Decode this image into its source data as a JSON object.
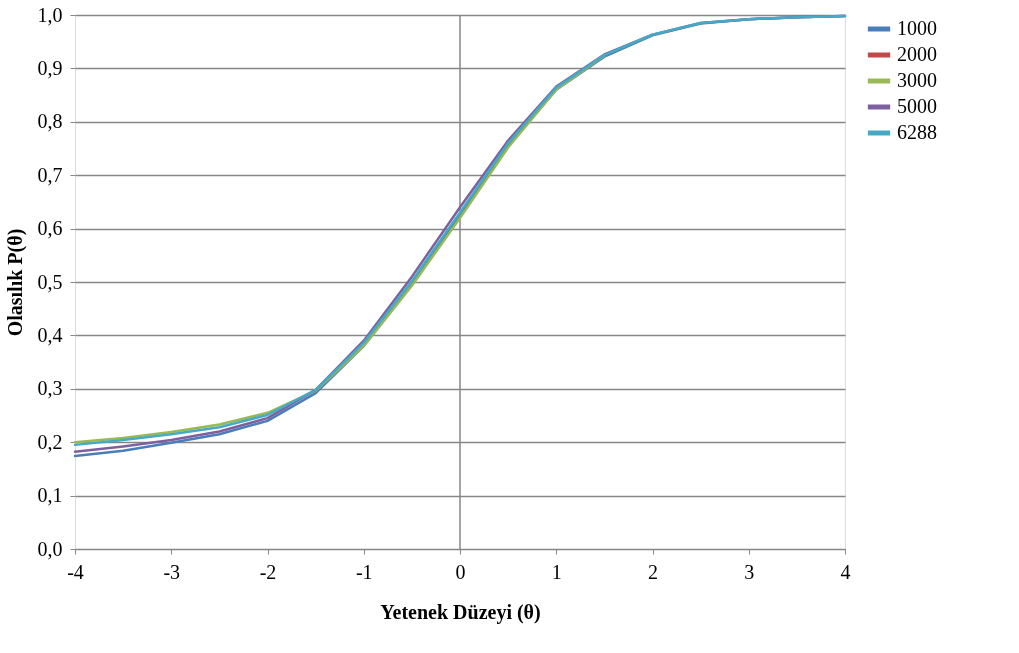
{
  "chart_data": {
    "type": "line",
    "xlabel": "Yetenek Düzeyi (θ)",
    "ylabel": "Olasılık   P(θ)",
    "x": [
      -4,
      -3.5,
      -3,
      -2.5,
      -2,
      -1.5,
      -1,
      -0.5,
      0,
      0.5,
      1,
      1.5,
      2,
      2.5,
      3,
      3.5,
      4
    ],
    "series": [
      {
        "name": "1000",
        "color": "#4a7ebb",
        "values": [
          0.174,
          0.184,
          0.199,
          0.215,
          0.24,
          0.292,
          0.38,
          0.495,
          0.625,
          0.755,
          0.86,
          0.922,
          0.962,
          0.984,
          0.992,
          0.996,
          0.998
        ]
      },
      {
        "name": "2000",
        "color": "#be4b48",
        "values": [
          null,
          null,
          null,
          null,
          null,
          null,
          null,
          null,
          null,
          null,
          null,
          null,
          null,
          null,
          null,
          null,
          null
        ]
      },
      {
        "name": "3000",
        "color": "#98b954",
        "values": [
          0.2,
          0.208,
          0.219,
          0.233,
          0.255,
          0.296,
          0.38,
          0.493,
          0.62,
          0.752,
          0.86,
          0.924,
          null,
          null,
          null,
          null,
          null
        ]
      },
      {
        "name": "5000",
        "color": "#7d60a0",
        "values": [
          0.182,
          0.192,
          0.204,
          0.22,
          0.245,
          0.298,
          0.39,
          0.51,
          0.64,
          0.765,
          0.866,
          0.926,
          0.963,
          0.985,
          0.992,
          0.996,
          0.998
        ]
      },
      {
        "name": "6288",
        "color": "#46aac5",
        "values": [
          0.195,
          0.204,
          0.215,
          0.228,
          0.251,
          0.298,
          0.386,
          0.502,
          0.63,
          0.76,
          0.864,
          0.925,
          0.963,
          0.985,
          0.992,
          0.996,
          0.998
        ]
      }
    ],
    "xlim": [
      -4,
      4
    ],
    "xticks": [
      -4,
      -3,
      -2,
      -1,
      0,
      1,
      2,
      3,
      4
    ],
    "ylim": [
      0,
      1
    ],
    "yticks": [
      {
        "value": 0,
        "label": "0,0"
      },
      {
        "value": 0.1,
        "label": "0,1"
      },
      {
        "value": 0.2,
        "label": "0,2"
      },
      {
        "value": 0.3,
        "label": "0,3"
      },
      {
        "value": 0.4,
        "label": "0,4"
      },
      {
        "value": 0.5,
        "label": "0,5"
      },
      {
        "value": 0.6,
        "label": "0,6"
      },
      {
        "value": 0.7,
        "label": "0,7"
      },
      {
        "value": 0.8,
        "label": "0,8"
      },
      {
        "value": 0.9,
        "label": "0,9"
      },
      {
        "value": 1,
        "label": "1,0"
      }
    ],
    "ref_lines": [
      {
        "axis": "x",
        "value": 0,
        "color": "#868686"
      }
    ],
    "grid": "y",
    "legend": "right",
    "marker": "none",
    "line_style": "solid"
  }
}
